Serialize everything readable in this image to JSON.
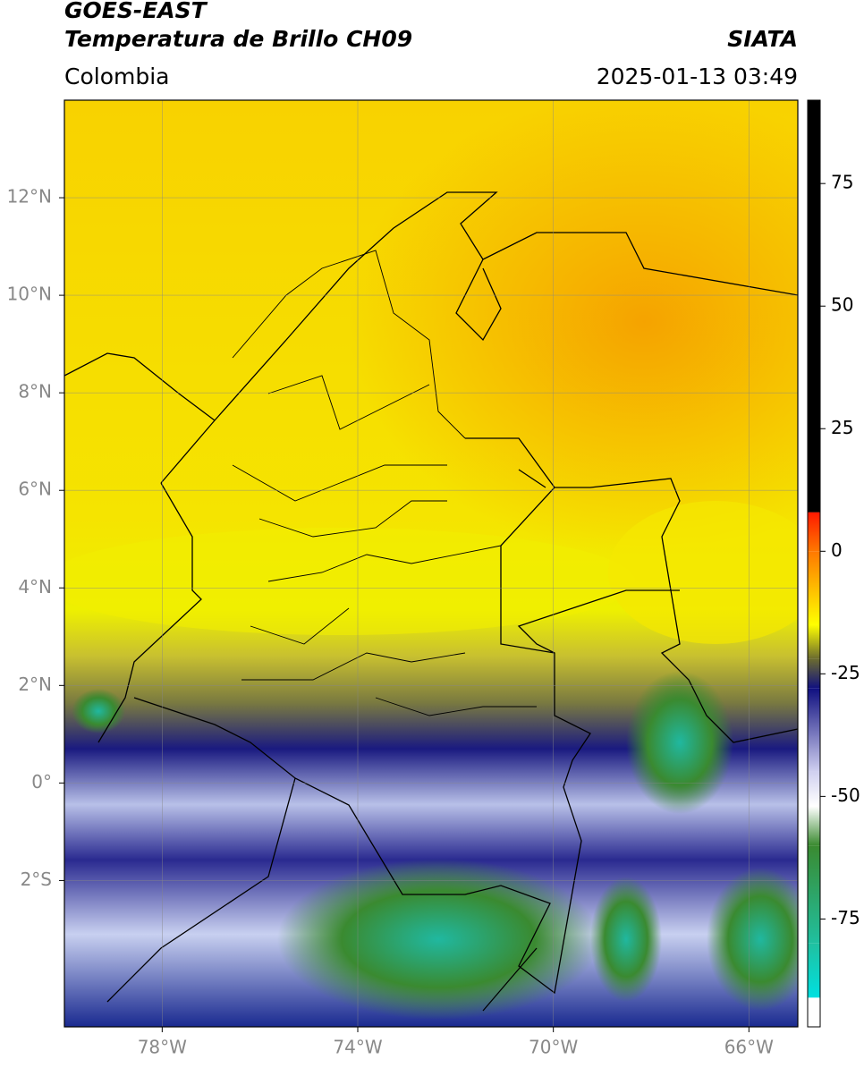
{
  "header": {
    "title": "GOES-EAST",
    "subtitle": "Temperatura de Brillo CH09",
    "source": "SIATA",
    "region": "Colombia",
    "datetime": "2025-01-13 03:49"
  },
  "map": {
    "xlim": [
      -80,
      -65
    ],
    "ylim": [
      -5,
      14
    ],
    "xticks": [
      {
        "value": -78,
        "label": "78°W"
      },
      {
        "value": -74,
        "label": "74°W"
      },
      {
        "value": -70,
        "label": "70°W"
      },
      {
        "value": -66,
        "label": "66°W"
      }
    ],
    "yticks": [
      {
        "value": 12,
        "label": "12°N"
      },
      {
        "value": 10,
        "label": "10°N"
      },
      {
        "value": 8,
        "label": "8°N"
      },
      {
        "value": 6,
        "label": "6°N"
      },
      {
        "value": 4,
        "label": "4°N"
      },
      {
        "value": 2,
        "label": "2°N"
      },
      {
        "value": 0,
        "label": "0°"
      },
      {
        "value": -2,
        "label": "2°S"
      }
    ],
    "grid": true
  },
  "colorbar": {
    "lim": [
      -97,
      92
    ],
    "ticks": [
      75,
      50,
      25,
      0,
      -25,
      -50,
      -75
    ],
    "colormap": [
      {
        "value": 92,
        "color": "#000000"
      },
      {
        "value": 8,
        "color": "#000000"
      },
      {
        "value": 7.9,
        "color": "#ff1a00"
      },
      {
        "value": 0,
        "color": "#ff7800"
      },
      {
        "value": -15,
        "color": "#ffff00"
      },
      {
        "value": -22,
        "color": "#6a6a30"
      },
      {
        "value": -28,
        "color": "#101080"
      },
      {
        "value": -45,
        "color": "#d0d0f0"
      },
      {
        "value": -52,
        "color": "#ffffff"
      },
      {
        "value": -60,
        "color": "#3a8a30"
      },
      {
        "value": -80,
        "color": "#20c0a0"
      },
      {
        "value": -91,
        "color": "#00e0e0"
      },
      {
        "value": -91.1,
        "color": "#ffffff"
      },
      {
        "value": -97,
        "color": "#ffffff"
      }
    ]
  }
}
